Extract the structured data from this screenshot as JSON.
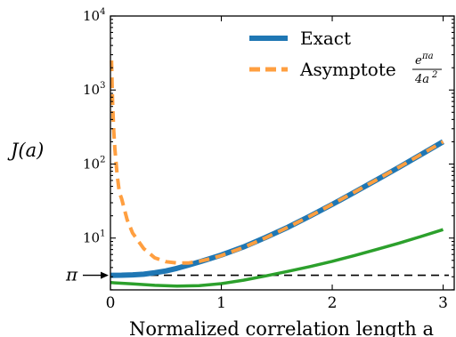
{
  "chart_data": {
    "type": "line",
    "xlabel": "Normalized correlation length a",
    "ylabel": "J(a)",
    "xlim": [
      0,
      3.1
    ],
    "ylim_log10": [
      0.3,
      4
    ],
    "log_y": true,
    "x_ticks": [
      "0",
      "1",
      "2",
      "3"
    ],
    "y_ticks": [
      {
        "base": "10",
        "exp": "1",
        "value": 10
      },
      {
        "base": "10",
        "exp": "2",
        "value": 100
      },
      {
        "base": "10",
        "exp": "3",
        "value": 1000
      },
      {
        "base": "10",
        "exp": "4",
        "value": 10000
      }
    ],
    "pi_label": "π",
    "pi_value": 3.14159,
    "legend_position": "top-right",
    "legend": {
      "exact": "Exact",
      "asymptote": "Asymptote",
      "asym_formula_num_base": "e",
      "asym_formula_num_exp": "πa",
      "asym_formula_den_base": "4a",
      "asym_formula_den_exp": "2"
    },
    "colors": {
      "exact": "#1f77b4",
      "asymptote": "#ff9f40",
      "green": "#2ca02c",
      "pi_line": "#000000"
    },
    "series": [
      {
        "name": "Exact",
        "x": [
          0,
          0.1,
          0.2,
          0.3,
          0.4,
          0.5,
          0.6,
          0.7,
          0.8,
          0.9,
          1.0,
          1.2,
          1.4,
          1.6,
          1.8,
          2.0,
          2.2,
          2.4,
          2.6,
          2.8,
          3.0
        ],
        "y": [
          3.14,
          3.15,
          3.18,
          3.25,
          3.4,
          3.6,
          3.9,
          4.3,
          4.75,
          5.3,
          5.9,
          7.6,
          10.2,
          14.0,
          19.8,
          28.5,
          41.5,
          61.0,
          90.0,
          134.0,
          200.0
        ]
      },
      {
        "name": "Asymptote",
        "x": [
          0.01,
          0.015,
          0.02,
          0.03,
          0.04,
          0.06,
          0.08,
          0.1,
          0.15,
          0.2,
          0.3,
          0.4,
          0.5,
          0.6,
          0.7,
          0.8,
          0.9,
          1.0,
          1.2,
          1.4,
          1.6,
          1.8,
          2.0,
          2.2,
          2.4,
          2.6,
          2.8,
          3.0
        ],
        "y": [
          2500,
          1115,
          628,
          281,
          159,
          72,
          41.6,
          34.2,
          17.8,
          11.7,
          7.2,
          5.4,
          4.8,
          4.6,
          4.6,
          4.85,
          5.25,
          5.8,
          7.46,
          10.1,
          14.0,
          19.8,
          28.6,
          41.7,
          61.3,
          90.5,
          134.3,
          200.0
        ]
      },
      {
        "name": "",
        "x": [
          0,
          0.2,
          0.4,
          0.6,
          0.8,
          1.0,
          1.2,
          1.4,
          1.6,
          1.8,
          2.0,
          2.2,
          2.4,
          2.6,
          2.8,
          3.0
        ],
        "y": [
          2.5,
          2.4,
          2.3,
          2.25,
          2.28,
          2.42,
          2.7,
          3.08,
          3.55,
          4.12,
          4.85,
          5.8,
          7.0,
          8.5,
          10.5,
          13.0
        ]
      }
    ]
  }
}
